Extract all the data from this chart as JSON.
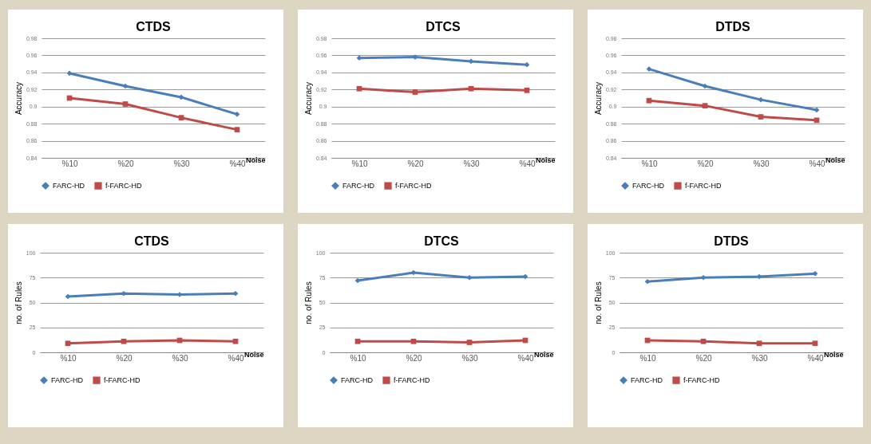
{
  "chart_data": [
    {
      "type": "line",
      "title": "CTDS",
      "xlabel": "Noise",
      "ylabel": "Accuracy",
      "categories": [
        "%10",
        "%20",
        "%30",
        "%40"
      ],
      "ylim": [
        0.84,
        0.98
      ],
      "yticks": [
        0.84,
        0.86,
        0.88,
        0.9,
        0.92,
        0.94,
        0.96,
        0.98
      ],
      "grid": "y",
      "legend": "bottom",
      "series": [
        {
          "name": "FARC-HD",
          "color": "#4a7ebb",
          "marker": "diamond",
          "values": [
            0.939,
            0.924,
            0.911,
            0.891
          ]
        },
        {
          "name": "f-FARC-HD",
          "color": "#be4b48",
          "marker": "square",
          "values": [
            0.91,
            0.903,
            0.887,
            0.873
          ]
        }
      ]
    },
    {
      "type": "line",
      "title": "DTCS",
      "xlabel": "Noise",
      "ylabel": "Accuracy",
      "categories": [
        "%10",
        "%20",
        "%30",
        "%40"
      ],
      "ylim": [
        0.84,
        0.98
      ],
      "yticks": [
        0.84,
        0.86,
        0.88,
        0.9,
        0.92,
        0.94,
        0.96,
        0.98
      ],
      "grid": "y",
      "legend": "bottom",
      "series": [
        {
          "name": "FARC-HD",
          "color": "#4a7ebb",
          "marker": "diamond",
          "values": [
            0.957,
            0.958,
            0.953,
            0.949
          ]
        },
        {
          "name": "f-FARC-HD",
          "color": "#be4b48",
          "marker": "square",
          "values": [
            0.921,
            0.917,
            0.921,
            0.919
          ]
        }
      ]
    },
    {
      "type": "line",
      "title": "DTDS",
      "xlabel": "Noise",
      "ylabel": "Accuracy",
      "categories": [
        "%10",
        "%20",
        "%30",
        "%40"
      ],
      "ylim": [
        0.84,
        0.98
      ],
      "yticks": [
        0.84,
        0.86,
        0.88,
        0.9,
        0.92,
        0.94,
        0.96,
        0.98
      ],
      "grid": "y",
      "legend": "bottom",
      "series": [
        {
          "name": "FARC-HD",
          "color": "#4a7ebb",
          "marker": "diamond",
          "values": [
            0.944,
            0.924,
            0.908,
            0.896
          ]
        },
        {
          "name": "f-FARC-HD",
          "color": "#be4b48",
          "marker": "square",
          "values": [
            0.907,
            0.901,
            0.888,
            0.884
          ]
        }
      ]
    },
    {
      "type": "line",
      "title": "CTDS",
      "xlabel": "Noise",
      "ylabel": "no. of Rules",
      "categories": [
        "%10",
        "%20",
        "%30",
        "%40"
      ],
      "ylim": [
        0,
        100
      ],
      "yticks": [
        0,
        25,
        50,
        75,
        100
      ],
      "grid": "y",
      "legend": "bottom",
      "series": [
        {
          "name": "FARC-HD",
          "color": "#4a7ebb",
          "marker": "diamond",
          "values": [
            56,
            59,
            58,
            59
          ]
        },
        {
          "name": "f-FARC-HD",
          "color": "#be4b48",
          "marker": "square",
          "values": [
            9,
            11,
            12,
            11
          ]
        }
      ]
    },
    {
      "type": "line",
      "title": "DTCS",
      "xlabel": "Noise",
      "ylabel": "no. of Rules",
      "categories": [
        "%10",
        "%20",
        "%30",
        "%40"
      ],
      "ylim": [
        0,
        100
      ],
      "yticks": [
        0,
        25,
        50,
        75,
        100
      ],
      "grid": "y",
      "legend": "bottom",
      "series": [
        {
          "name": "FARC-HD",
          "color": "#4a7ebb",
          "marker": "diamond",
          "values": [
            72,
            80,
            75,
            76
          ]
        },
        {
          "name": "f-FARC-HD",
          "color": "#be4b48",
          "marker": "square",
          "values": [
            11,
            11,
            10,
            12
          ]
        }
      ]
    },
    {
      "type": "line",
      "title": "DTDS",
      "xlabel": "Noise",
      "ylabel": "no. of Rules",
      "categories": [
        "%10",
        "%20",
        "%30",
        "%40"
      ],
      "ylim": [
        0,
        100
      ],
      "yticks": [
        0,
        25,
        50,
        75,
        100
      ],
      "grid": "y",
      "legend": "bottom",
      "series": [
        {
          "name": "FARC-HD",
          "color": "#4a7ebb",
          "marker": "diamond",
          "values": [
            71,
            75,
            76,
            79
          ]
        },
        {
          "name": "f-FARC-HD",
          "color": "#be4b48",
          "marker": "square",
          "values": [
            12,
            11,
            9,
            9
          ]
        }
      ]
    }
  ]
}
